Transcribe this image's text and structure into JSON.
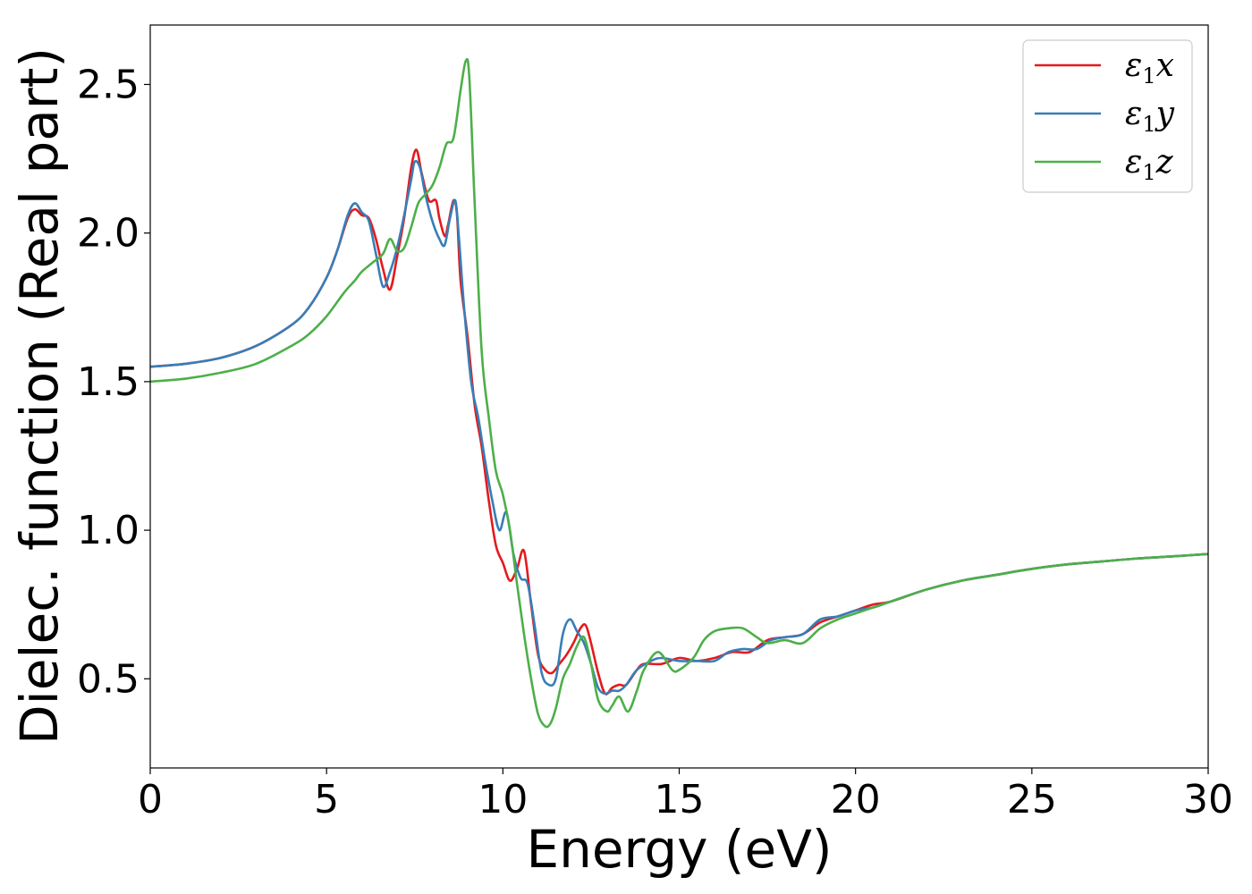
{
  "chart_data": {
    "type": "line",
    "title": "",
    "xlabel": "Energy (eV)",
    "ylabel": "Dielec. function (Real part)",
    "xlim": [
      0,
      30
    ],
    "ylim": [
      0.2,
      2.7
    ],
    "xticks": [
      0,
      5,
      10,
      15,
      20,
      25,
      30
    ],
    "xtick_labels": [
      "0",
      "5",
      "10",
      "15",
      "20",
      "25",
      "30"
    ],
    "yticks": [
      0.5,
      1.0,
      1.5,
      2.0,
      2.5
    ],
    "ytick_labels": [
      "0.5",
      "1.0",
      "1.5",
      "2.0",
      "2.5"
    ],
    "grid": false,
    "legend_position": "top-right",
    "series": [
      {
        "name": "ε1x",
        "legend_symbol": "ε",
        "legend_sub": "1",
        "legend_var": "x",
        "color": "#e41a1c",
        "x": [
          0,
          1,
          2,
          3,
          4,
          4.5,
          5,
          5.3,
          5.6,
          5.8,
          6.0,
          6.2,
          6.4,
          6.6,
          6.8,
          7.0,
          7.2,
          7.4,
          7.55,
          7.7,
          7.9,
          8.1,
          8.2,
          8.35,
          8.45,
          8.6,
          8.7,
          8.8,
          9.0,
          9.2,
          9.4,
          9.6,
          9.8,
          10.0,
          10.2,
          10.4,
          10.6,
          10.8,
          11.0,
          11.2,
          11.4,
          11.6,
          11.8,
          12.0,
          12.2,
          12.35,
          12.5,
          12.7,
          12.9,
          13.1,
          13.3,
          13.5,
          13.8,
          14.0,
          14.5,
          15.0,
          15.5,
          16.0,
          16.5,
          17.0,
          17.5,
          18.0,
          18.5,
          19.0,
          19.5,
          20.0,
          20.5,
          21.0,
          22.0,
          23.0,
          24.0,
          25.0,
          26.0,
          27.0,
          28.0,
          29.0,
          30.0
        ],
        "y": [
          1.55,
          1.56,
          1.58,
          1.62,
          1.69,
          1.75,
          1.85,
          1.94,
          2.05,
          2.08,
          2.06,
          2.05,
          1.98,
          1.88,
          1.81,
          1.92,
          2.05,
          2.22,
          2.28,
          2.2,
          2.11,
          2.11,
          2.05,
          1.99,
          2.03,
          2.11,
          2.06,
          1.84,
          1.65,
          1.42,
          1.28,
          1.1,
          0.95,
          0.89,
          0.83,
          0.87,
          0.93,
          0.75,
          0.58,
          0.53,
          0.52,
          0.55,
          0.58,
          0.62,
          0.67,
          0.68,
          0.62,
          0.52,
          0.45,
          0.47,
          0.48,
          0.48,
          0.53,
          0.55,
          0.55,
          0.57,
          0.56,
          0.57,
          0.59,
          0.59,
          0.63,
          0.64,
          0.65,
          0.69,
          0.71,
          0.73,
          0.75,
          0.76,
          0.8,
          0.83,
          0.85,
          0.87,
          0.885,
          0.895,
          0.905,
          0.912,
          0.92
        ]
      },
      {
        "name": "ε1y",
        "legend_symbol": "ε",
        "legend_sub": "1",
        "legend_var": "y",
        "color": "#377eb8",
        "x": [
          0,
          1,
          2,
          3,
          4,
          4.5,
          5,
          5.3,
          5.6,
          5.8,
          6.0,
          6.2,
          6.4,
          6.6,
          6.8,
          7.0,
          7.2,
          7.4,
          7.5,
          7.65,
          7.8,
          8.0,
          8.2,
          8.35,
          8.5,
          8.65,
          8.75,
          8.9,
          9.1,
          9.3,
          9.5,
          9.7,
          9.9,
          10.1,
          10.3,
          10.5,
          10.7,
          10.9,
          11.1,
          11.3,
          11.5,
          11.7,
          11.9,
          12.1,
          12.3,
          12.5,
          12.7,
          12.9,
          13.1,
          13.3,
          13.5,
          13.8,
          14.2,
          14.5,
          15.0,
          15.5,
          16.0,
          16.4,
          16.8,
          17.2,
          17.6,
          18.0,
          18.5,
          19.0,
          19.5,
          20.0,
          20.5,
          21.0,
          22.0,
          23.0,
          24.0,
          25.0,
          26.0,
          27.0,
          28.0,
          29.0,
          30.0
        ],
        "y": [
          1.55,
          1.56,
          1.58,
          1.62,
          1.69,
          1.75,
          1.85,
          1.94,
          2.06,
          2.1,
          2.07,
          2.04,
          1.93,
          1.82,
          1.87,
          1.95,
          2.06,
          2.18,
          2.24,
          2.22,
          2.13,
          2.04,
          1.98,
          1.96,
          2.05,
          2.11,
          1.99,
          1.75,
          1.5,
          1.38,
          1.23,
          1.1,
          1.0,
          1.06,
          0.92,
          0.84,
          0.82,
          0.68,
          0.52,
          0.48,
          0.5,
          0.65,
          0.7,
          0.66,
          0.62,
          0.55,
          0.47,
          0.45,
          0.46,
          0.46,
          0.48,
          0.53,
          0.56,
          0.57,
          0.56,
          0.56,
          0.56,
          0.59,
          0.6,
          0.6,
          0.63,
          0.64,
          0.65,
          0.7,
          0.71,
          0.73,
          0.74,
          0.76,
          0.8,
          0.83,
          0.85,
          0.87,
          0.885,
          0.895,
          0.905,
          0.912,
          0.92
        ]
      },
      {
        "name": "ε1z",
        "legend_symbol": "ε",
        "legend_sub": "1",
        "legend_var": "z",
        "color": "#4daf4a",
        "x": [
          0,
          1,
          2,
          3,
          4,
          4.5,
          5,
          5.5,
          5.8,
          6.0,
          6.3,
          6.6,
          6.8,
          7.0,
          7.2,
          7.4,
          7.6,
          7.8,
          8.0,
          8.2,
          8.4,
          8.6,
          8.8,
          8.95,
          9.05,
          9.2,
          9.4,
          9.6,
          9.8,
          10.0,
          10.2,
          10.4,
          10.6,
          10.8,
          11.0,
          11.2,
          11.35,
          11.5,
          11.7,
          11.9,
          12.1,
          12.3,
          12.5,
          12.7,
          12.95,
          13.1,
          13.3,
          13.55,
          13.8,
          14.0,
          14.4,
          14.8,
          15.0,
          15.4,
          15.7,
          16.0,
          16.4,
          16.8,
          17.2,
          17.5,
          18.0,
          18.5,
          19.0,
          19.5,
          20.0,
          20.5,
          21.0,
          22.0,
          23.0,
          24.0,
          25.0,
          26.0,
          27.0,
          28.0,
          29.0,
          30.0
        ],
        "y": [
          1.5,
          1.51,
          1.53,
          1.56,
          1.62,
          1.66,
          1.72,
          1.8,
          1.84,
          1.87,
          1.9,
          1.93,
          1.98,
          1.94,
          1.95,
          2.02,
          2.1,
          2.13,
          2.16,
          2.22,
          2.3,
          2.32,
          2.48,
          2.58,
          2.52,
          2.1,
          1.6,
          1.38,
          1.2,
          1.12,
          1.0,
          0.82,
          0.65,
          0.5,
          0.38,
          0.34,
          0.35,
          0.4,
          0.5,
          0.55,
          0.61,
          0.64,
          0.55,
          0.43,
          0.39,
          0.41,
          0.44,
          0.39,
          0.46,
          0.53,
          0.59,
          0.53,
          0.53,
          0.57,
          0.63,
          0.66,
          0.67,
          0.67,
          0.64,
          0.62,
          0.63,
          0.62,
          0.67,
          0.7,
          0.72,
          0.74,
          0.76,
          0.8,
          0.83,
          0.85,
          0.87,
          0.885,
          0.895,
          0.905,
          0.912,
          0.92
        ]
      }
    ]
  }
}
